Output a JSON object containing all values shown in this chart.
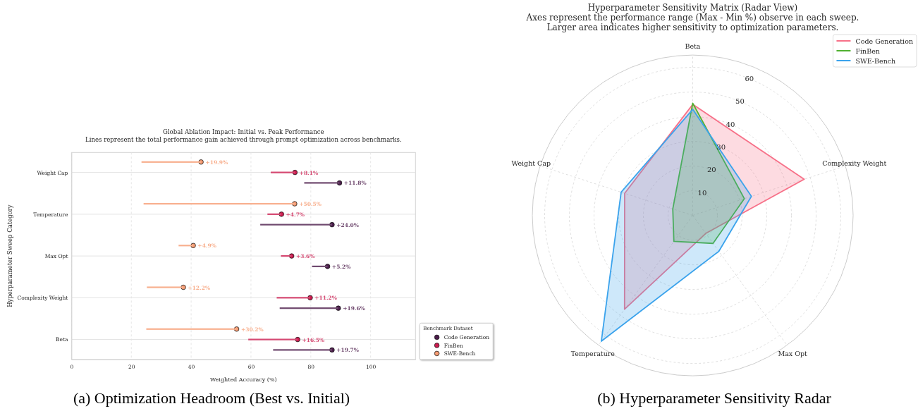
{
  "chart_data": [
    {
      "type": "bar",
      "orientation": "horizontal",
      "title": "Global Ablation Impact: Initial vs. Peak Performance",
      "subtitle": "Lines represent the total performance gain achieved through prompt optimization across benchmarks.",
      "xlabel": "Weighted Accuracy (%)",
      "ylabel": "Hyperparameter Sweep Category",
      "legend_title": "Benchmark Dataset",
      "categories": [
        "Weight Cap",
        "Temperature",
        "Max Opt",
        "Complexity Weight",
        "Beta"
      ],
      "series": [
        {
          "type": "bar",
          "color": "#704a6f",
          "base": [
            77.8,
            63.1,
            80.4,
            69.6,
            67.4
          ],
          "values": [
            11.8,
            24.0,
            5.2,
            19.6,
            19.7
          ],
          "value_labels": [
            "+11.8%",
            "+24.0%",
            "+5.2%",
            "+19.6%",
            "+19.7%"
          ]
        },
        {
          "type": "bar",
          "color": "#d54972",
          "base": [
            66.6,
            65.5,
            70.0,
            68.6,
            59.1
          ],
          "values": [
            8.1,
            4.7,
            3.6,
            11.2,
            16.5
          ],
          "value_labels": [
            "+8.1%",
            "+4.7%",
            "+3.6%",
            "+11.2%",
            "+16.5%"
          ]
        },
        {
          "type": "bar",
          "color": "#f8b08f",
          "base": [
            23.4,
            24.1,
            35.8,
            25.2,
            25.0
          ],
          "values": [
            19.9,
            50.5,
            4.9,
            12.2,
            30.2
          ],
          "value_labels": [
            "+19.9%",
            "+50.5%",
            "+4.9%",
            "+12.2%",
            "+30.2%"
          ]
        },
        {
          "type": "scatter",
          "name": "Code Generation",
          "color": "#4c1d4b",
          "values": [
            89.6,
            87.1,
            85.6,
            89.2,
            87.1
          ]
        },
        {
          "type": "scatter",
          "name": "FinBen",
          "color": "#cb1b4f",
          "values": [
            74.7,
            70.2,
            73.6,
            79.8,
            75.6
          ]
        },
        {
          "type": "scatter",
          "name": "SWE-Bench",
          "color": "#f69c73",
          "values": [
            43.3,
            74.6,
            40.7,
            37.4,
            55.2
          ]
        }
      ],
      "xlim": [
        0,
        115
      ],
      "xticks": [
        0,
        20,
        40,
        60,
        80,
        100
      ],
      "grid": true,
      "legend": "bottom right",
      "marker": "circle",
      "annotations": [
        "(a) Optimization Headroom (Best vs. Initial)"
      ]
    },
    {
      "type": "radar",
      "title": "Hyperparameter Sensitivity Matrix (Radar View)",
      "subtitle": "Axes represent the performance range (Max - Min %) observe in each sweep.\nLarger area indicates higher sensitivity to optimization parameters.",
      "categories": [
        "Beta",
        "Complexity Weight",
        "Max Opt",
        "Temperature",
        "Weight Cap"
      ],
      "series": [
        {
          "name": "Code Generation",
          "color": "#f77189",
          "values": [
            45,
            47.5,
            9,
            47,
            29
          ]
        },
        {
          "name": "FinBen",
          "color": "#50b131",
          "values": [
            45.5,
            22,
            14,
            13,
            8.5
          ]
        },
        {
          "name": "SWE-Bench",
          "color": "#3ba3ec",
          "values": [
            43,
            25,
            18,
            63,
            30.5
          ]
        }
      ],
      "ylim": [
        0,
        65
      ],
      "yticks": [
        10,
        20,
        30,
        40,
        50,
        60
      ],
      "grid": true,
      "legend": "top right",
      "annotations": [
        "(b) Hyperparameter Sensitivity Radar"
      ]
    }
  ]
}
